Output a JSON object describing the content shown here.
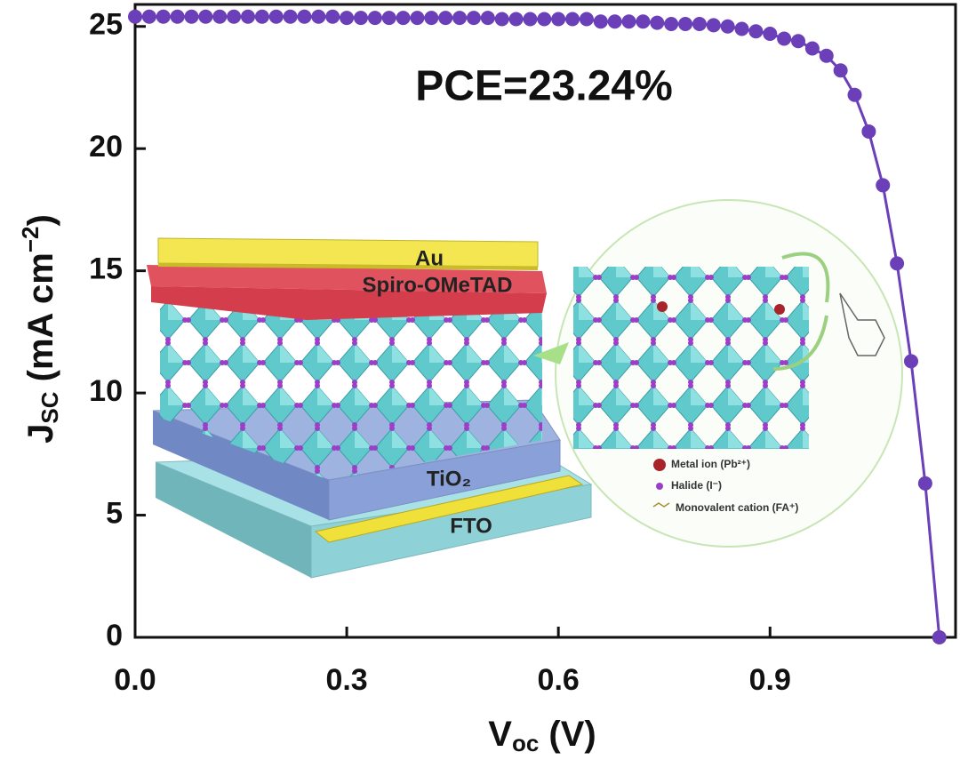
{
  "chart_data": {
    "type": "line",
    "x": [
      0,
      0.02,
      0.04,
      0.06,
      0.08,
      0.1,
      0.12,
      0.14,
      0.16,
      0.18,
      0.2,
      0.22,
      0.24,
      0.26,
      0.28,
      0.3,
      0.32,
      0.34,
      0.36,
      0.38,
      0.4,
      0.42,
      0.44,
      0.46,
      0.48,
      0.5,
      0.52,
      0.54,
      0.56,
      0.58,
      0.6,
      0.62,
      0.64,
      0.66,
      0.68,
      0.7,
      0.72,
      0.74,
      0.76,
      0.78,
      0.8,
      0.82,
      0.84,
      0.86,
      0.88,
      0.9,
      0.92,
      0.94,
      0.96,
      0.98,
      1.0,
      1.02,
      1.04,
      1.06,
      1.08,
      1.1,
      1.12,
      1.14
    ],
    "values": [
      25.4,
      25.4,
      25.4,
      25.4,
      25.4,
      25.4,
      25.4,
      25.4,
      25.4,
      25.4,
      25.4,
      25.4,
      25.4,
      25.4,
      25.4,
      25.35,
      25.35,
      25.35,
      25.35,
      25.35,
      25.35,
      25.35,
      25.35,
      25.35,
      25.35,
      25.35,
      25.3,
      25.3,
      25.3,
      25.3,
      25.3,
      25.3,
      25.3,
      25.2,
      25.2,
      25.2,
      25.2,
      25.15,
      25.1,
      25.1,
      25.1,
      25.05,
      25.0,
      24.9,
      24.8,
      24.7,
      24.5,
      24.4,
      24.1,
      23.8,
      23.2,
      22.2,
      20.7,
      18.5,
      15.3,
      11.3,
      6.3,
      0
    ],
    "color": "#6a3fb8",
    "xlim": [
      0,
      1.163
    ],
    "ylim": [
      0,
      25.9
    ],
    "xticks": [
      {
        "value": 0,
        "label": "0.0"
      },
      0.3,
      0.6,
      0.9
    ],
    "yticks": [
      0,
      5,
      10,
      15,
      20,
      25
    ],
    "x_label": {
      "main": "V",
      "sub": "oc",
      "rest": " (V)"
    },
    "y_label": {
      "main": "J",
      "sub": "SC",
      "rest": " (mA cm",
      "sup": "−2",
      "end": ")"
    },
    "annotation": "PCE=23.24%",
    "inset": {
      "layers": [
        "Au",
        "Spiro-OMeTAD",
        "TiO₂",
        "FTO"
      ],
      "legend": [
        "Metal ion (Pb²⁺)",
        "Halide (I⁻)",
        "Monovalent cation (FA⁺)"
      ]
    }
  }
}
